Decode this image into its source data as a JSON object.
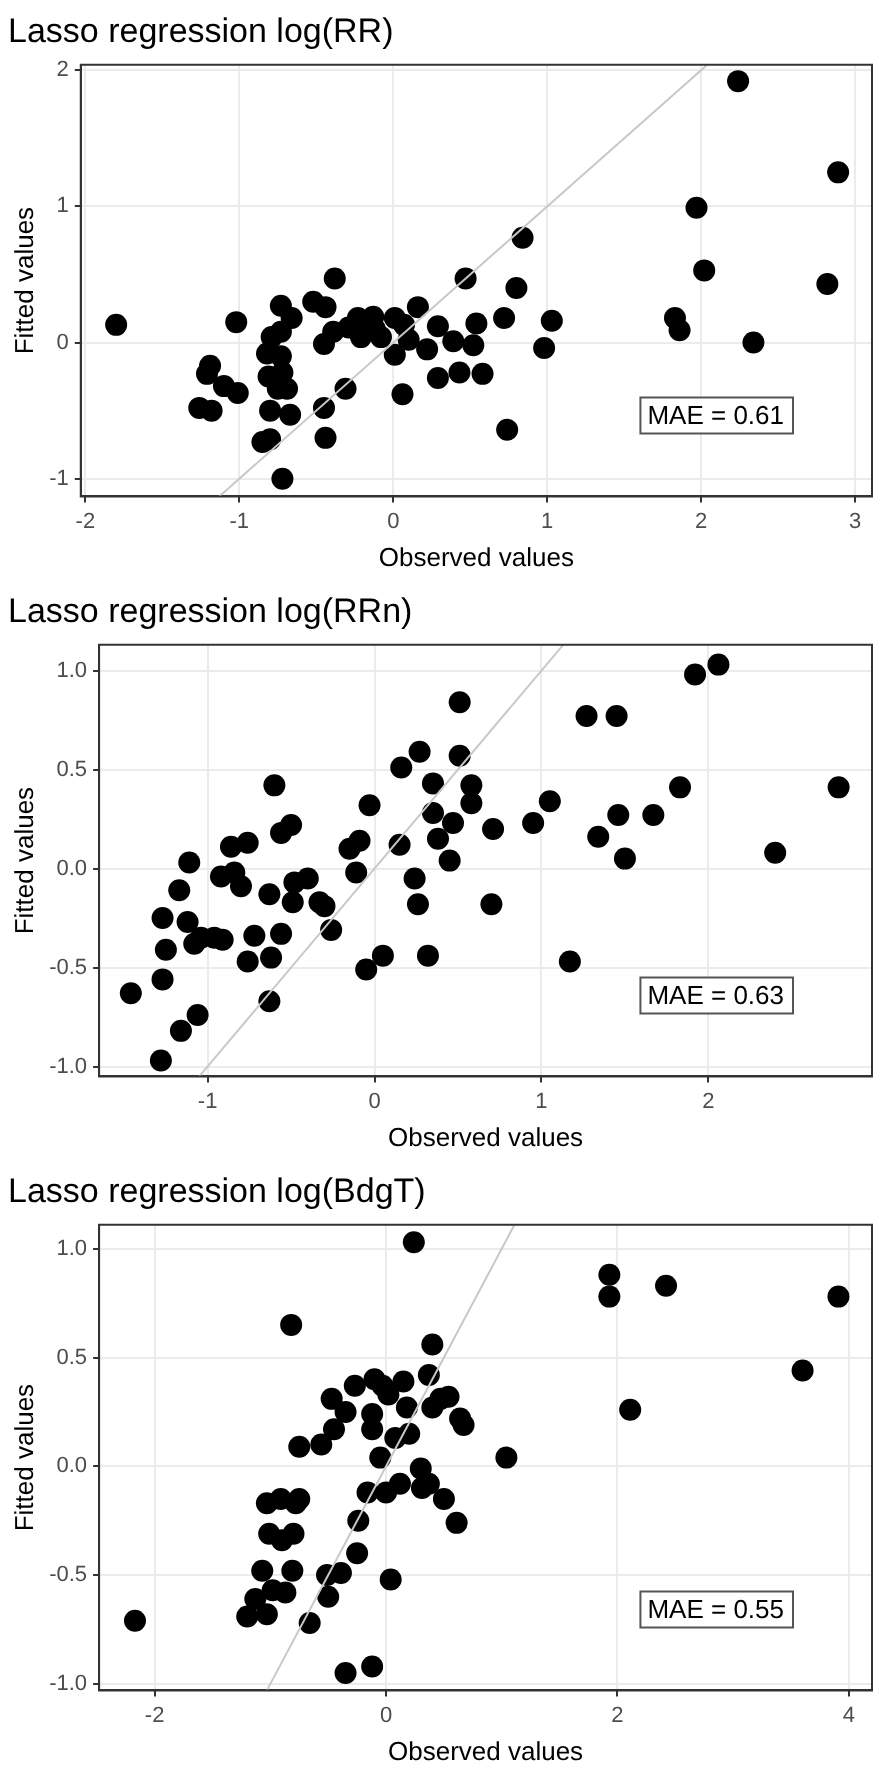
{
  "chart_data": [
    {
      "type": "scatter",
      "title": "Lasso regression log(RR)",
      "xlabel": "Observed values",
      "ylabel": "Fitted values",
      "marker": "circle",
      "grid": true,
      "xlim": [
        -2.03,
        3.11
      ],
      "ylim": [
        -1.13,
        2.04
      ],
      "xticks": [
        -2,
        -1,
        0,
        1,
        2,
        3
      ],
      "yticks": [
        -1,
        0,
        1,
        2
      ],
      "annotations": [
        "MAE = 0.61"
      ],
      "series": [
        {
          "type": "line",
          "marker": "none",
          "color": "#c8c8c8",
          "x": [
            -1.13,
            2.04
          ],
          "values": [
            -1.13,
            2.04
          ]
        },
        {
          "type": "scatter",
          "color": "#000000",
          "x": [
            -1.8,
            -1.02,
            -1.26,
            -1.18,
            -1.19,
            -1.21,
            -1.1,
            -1.01,
            -0.85,
            -0.8,
            -0.8,
            -0.67,
            -0.72,
            -0.79,
            -0.73,
            -0.73,
            -0.66,
            -0.82,
            -0.73,
            -0.81,
            -0.72,
            -0.75,
            -0.69,
            -0.52,
            -0.44,
            -0.38,
            -0.45,
            -0.45,
            -0.44,
            -0.31,
            -0.39,
            -0.29,
            -0.23,
            -0.21,
            -0.13,
            -0.12,
            -0.08,
            0.01,
            0.01,
            0.07,
            0.1,
            0.16,
            0.06,
            0.22,
            0.29,
            0.29,
            0.39,
            0.47,
            0.43,
            0.52,
            0.54,
            0.58,
            0.72,
            0.8,
            0.84,
            0.74,
            0.98,
            1.03,
            1.83,
            1.86,
            1.97,
            2.02,
            2.24,
            2.34,
            2.82,
            2.89
          ],
          "values": [
            0.13,
            0.15,
            -0.48,
            -0.5,
            -0.17,
            -0.23,
            -0.32,
            -0.37,
            -0.73,
            -0.71,
            -0.5,
            -0.53,
            -1.0,
            0.04,
            0.08,
            0.27,
            0.18,
            -0.08,
            -0.1,
            -0.25,
            -0.22,
            -0.34,
            -0.34,
            0.3,
            0.26,
            0.47,
            -0.01,
            -0.48,
            -0.7,
            -0.34,
            0.08,
            0.11,
            0.18,
            0.04,
            0.19,
            0.1,
            0.04,
            0.18,
            -0.09,
            0.13,
            0.02,
            0.26,
            -0.38,
            -0.05,
            -0.26,
            0.12,
            0.01,
            0.47,
            -0.22,
            -0.02,
            0.14,
            -0.23,
            0.18,
            0.4,
            0.77,
            -0.64,
            -0.04,
            0.16,
            0.18,
            0.09,
            0.99,
            0.53,
            1.92,
            0.0,
            0.43,
            1.25
          ]
        }
      ]
    },
    {
      "type": "scatter",
      "title": "Lasso regression log(RRn)",
      "xlabel": "Observed values",
      "ylabel": "Fitted values",
      "marker": "circle",
      "grid": true,
      "xlim": [
        -1.65,
        2.98
      ],
      "ylim": [
        -1.05,
        1.13
      ],
      "xticks": [
        -1,
        0,
        1,
        2
      ],
      "yticks": [
        {
          "value": -1,
          "label": "-1.0"
        },
        {
          "value": -0.5,
          "label": "-0.5"
        },
        {
          "value": 0,
          "label": "0.0"
        },
        {
          "value": 0.5,
          "label": "0.5"
        },
        {
          "value": 1,
          "label": "1.0"
        }
      ],
      "annotations": [
        "MAE = 0.63"
      ],
      "series": [
        {
          "type": "line",
          "marker": "none",
          "color": "#c8c8c8",
          "x": [
            -1.05,
            1.13
          ],
          "values": [
            -1.05,
            1.13
          ]
        },
        {
          "type": "scatter",
          "color": "#000000",
          "x": [
            -1.46,
            -1.27,
            -1.28,
            -1.27,
            -1.25,
            -1.17,
            -1.16,
            -1.11,
            -1.12,
            -1.08,
            -1.06,
            -1.04,
            -0.96,
            -0.91,
            -0.92,
            -0.86,
            -0.84,
            -0.8,
            -0.76,
            -0.76,
            -0.72,
            -0.63,
            -0.6,
            -0.56,
            -0.5,
            -0.56,
            -0.62,
            -0.63,
            -0.49,
            -0.48,
            -0.4,
            -0.33,
            -0.3,
            -0.26,
            -0.15,
            -0.09,
            -0.11,
            -0.03,
            -0.05,
            0.05,
            0.15,
            0.16,
            0.27,
            0.24,
            0.26,
            0.32,
            0.35,
            0.35,
            0.38,
            0.45,
            0.47,
            0.51,
            0.51,
            0.58,
            0.58,
            0.71,
            0.7,
            0.95,
            1.05,
            1.17,
            1.27,
            1.34,
            1.45,
            1.46,
            1.5,
            1.67,
            1.83,
            1.92,
            2.06,
            2.4,
            2.78
          ],
          "values": [
            -0.63,
            -0.56,
            -0.97,
            -0.25,
            -0.41,
            -0.11,
            -0.82,
            0.03,
            -0.27,
            -0.38,
            -0.74,
            -0.35,
            -0.35,
            -0.36,
            -0.04,
            0.11,
            -0.02,
            -0.09,
            0.13,
            -0.47,
            -0.34,
            -0.13,
            0.42,
            0.18,
            0.22,
            -0.33,
            -0.45,
            -0.67,
            -0.17,
            -0.07,
            -0.05,
            -0.17,
            -0.19,
            -0.31,
            0.1,
            0.14,
            -0.02,
            0.32,
            -0.51,
            -0.44,
            0.12,
            0.51,
            0.59,
            -0.05,
            -0.18,
            -0.44,
            0.43,
            0.28,
            0.15,
            0.04,
            0.23,
            0.57,
            0.84,
            0.42,
            0.33,
            0.2,
            -0.18,
            0.23,
            0.34,
            -0.47,
            0.77,
            0.16,
            0.77,
            0.27,
            0.05,
            0.27,
            0.41,
            0.98,
            1.03,
            0.08,
            0.41
          ]
        }
      ]
    },
    {
      "type": "scatter",
      "title": "Lasso regression log(BdgT)",
      "xlabel": "Observed values",
      "ylabel": "Fitted values",
      "marker": "circle",
      "grid": true,
      "xlim": [
        -2.48,
        4.2
      ],
      "ylim": [
        -1.03,
        1.11
      ],
      "xticks": [
        -2,
        0,
        2,
        4
      ],
      "yticks": [
        {
          "value": -1,
          "label": "-1.0"
        },
        {
          "value": -0.5,
          "label": "-0.5"
        },
        {
          "value": 0,
          "label": "0.0"
        },
        {
          "value": 0.5,
          "label": "0.5"
        },
        {
          "value": 1,
          "label": "1.0"
        }
      ],
      "annotations": [
        "MAE = 0.55"
      ],
      "series": [
        {
          "type": "line",
          "marker": "none",
          "color": "#c8c8c8",
          "x": [
            -1.03,
            1.11
          ],
          "values": [
            -1.03,
            1.11
          ]
        },
        {
          "type": "scatter",
          "color": "#000000",
          "x": [
            -2.17,
            -1.2,
            -1.13,
            -1.03,
            -1.07,
            -1.01,
            -1.03,
            -0.98,
            -0.87,
            -0.9,
            -0.91,
            -0.8,
            -0.81,
            -0.78,
            -0.75,
            -0.82,
            -0.75,
            -0.66,
            -0.56,
            -0.47,
            -0.45,
            -0.35,
            -0.27,
            -0.5,
            -0.51,
            -0.39,
            -0.35,
            -0.24,
            -0.25,
            -0.16,
            -0.12,
            -0.12,
            -0.1,
            -0.03,
            0.02,
            -0.05,
            0.0,
            0.04,
            -0.12,
            0.08,
            0.12,
            0.15,
            0.18,
            0.2,
            0.24,
            0.3,
            0.31,
            0.37,
            0.37,
            0.4,
            0.4,
            0.47,
            0.54,
            0.5,
            0.61,
            0.64,
            0.67,
            1.04,
            1.93,
            1.93,
            2.42,
            2.11,
            3.6,
            3.91
          ],
          "values": [
            -0.71,
            -0.69,
            -0.61,
            -0.68,
            -0.48,
            -0.31,
            -0.17,
            -0.57,
            -0.58,
            -0.34,
            -0.15,
            -0.31,
            -0.48,
            -0.17,
            -0.15,
            0.65,
            0.09,
            -0.72,
            0.1,
            0.31,
            0.17,
            0.25,
            0.37,
            -0.6,
            -0.5,
            -0.49,
            -0.95,
            -0.25,
            -0.4,
            -0.12,
            0.24,
            0.17,
            0.4,
            0.37,
            0.33,
            0.04,
            -0.12,
            -0.52,
            -0.92,
            0.13,
            -0.08,
            0.39,
            0.27,
            0.15,
            1.03,
            -0.01,
            -0.1,
            -0.08,
            0.42,
            0.56,
            0.27,
            0.31,
            0.32,
            -0.15,
            -0.26,
            0.22,
            0.19,
            0.04,
            0.88,
            0.78,
            0.83,
            0.26,
            0.44,
            0.78
          ]
        }
      ]
    }
  ]
}
